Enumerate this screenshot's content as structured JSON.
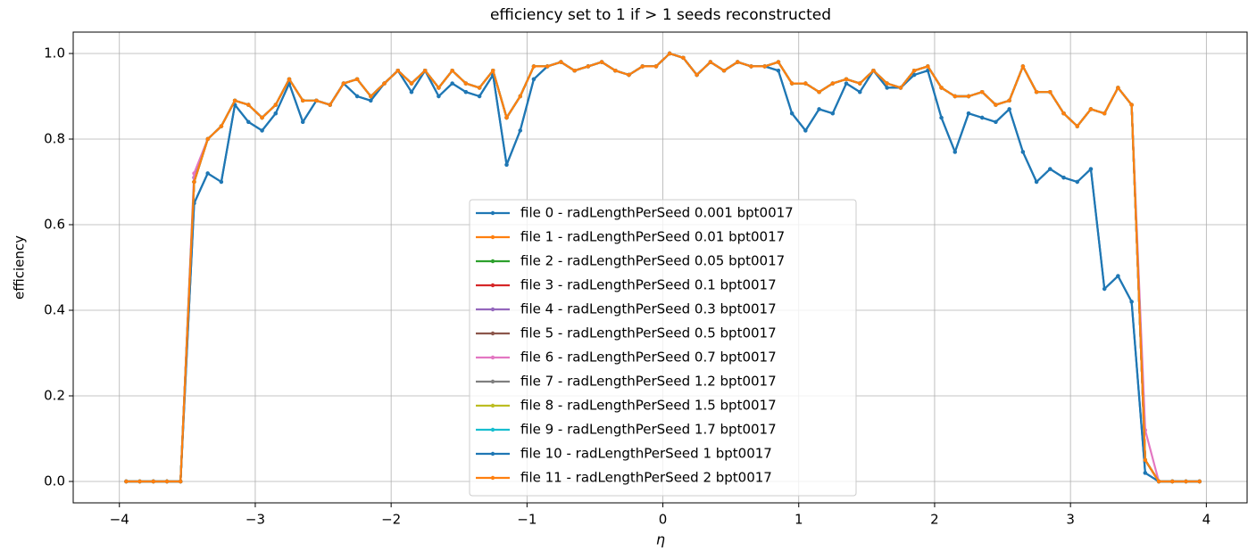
{
  "chart_data": {
    "type": "line",
    "title": "efficiency set to 1 if > 1 seeds reconstructed",
    "x_label": "η",
    "y_label": "efficiency",
    "xlim": [
      -4.34,
      4.3
    ],
    "ylim": [
      -0.05,
      1.05
    ],
    "xticks": [
      {
        "value": -4,
        "label": "−4"
      },
      {
        "value": -3,
        "label": "−3"
      },
      {
        "value": -2,
        "label": "−2"
      },
      {
        "value": -1,
        "label": "−1"
      },
      0,
      1,
      2,
      3,
      4
    ],
    "yticks": [
      {
        "value": 0,
        "label": "0.0"
      },
      {
        "value": 0.2,
        "label": "0.2"
      },
      {
        "value": 0.4,
        "label": "0.4"
      },
      {
        "value": 0.6,
        "label": "0.6"
      },
      {
        "value": 0.8,
        "label": "0.8"
      },
      {
        "value": 1,
        "label": "1.0"
      }
    ],
    "grid": true,
    "legend": "lower center",
    "x": [
      -3.95,
      -3.85,
      -3.75,
      -3.65,
      -3.55,
      -3.45,
      -3.35,
      -3.25,
      -3.15,
      -3.05,
      -2.95,
      -2.85,
      -2.75,
      -2.65,
      -2.55,
      -2.45,
      -2.35,
      -2.25,
      -2.15,
      -2.05,
      -1.95,
      -1.85,
      -1.75,
      -1.65,
      -1.55,
      -1.45,
      -1.35,
      -1.25,
      -1.15,
      -1.05,
      -0.95,
      -0.85,
      -0.75,
      -0.65,
      -0.55,
      -0.45,
      -0.35,
      -0.25,
      -0.15,
      -0.05,
      0.05,
      0.15,
      0.25,
      0.35,
      0.45,
      0.55,
      0.65,
      0.75,
      0.85,
      0.95,
      1.05,
      1.15,
      1.25,
      1.35,
      1.45,
      1.55,
      1.65,
      1.75,
      1.85,
      1.95,
      2.05,
      2.15,
      2.25,
      2.35,
      2.45,
      2.55,
      2.65,
      2.75,
      2.85,
      2.95,
      3.05,
      3.15,
      3.25,
      3.35,
      3.45,
      3.55,
      3.65,
      3.75,
      3.85,
      3.95
    ],
    "series": [
      {
        "name": "file 0 - radLengthPerSeed 0.001 bpt0017",
        "color": "#1f77b4",
        "values": [
          0,
          0,
          0,
          0,
          0,
          0.65,
          0.72,
          0.7,
          0.88,
          0.84,
          0.82,
          0.86,
          0.93,
          0.84,
          0.89,
          0.88,
          0.93,
          0.9,
          0.89,
          0.93,
          0.96,
          0.91,
          0.96,
          0.9,
          0.93,
          0.91,
          0.9,
          0.95,
          0.74,
          0.82,
          0.94,
          0.97,
          0.98,
          0.96,
          0.97,
          0.98,
          0.96,
          0.95,
          0.97,
          0.97,
          1.0,
          0.99,
          0.95,
          0.98,
          0.96,
          0.98,
          0.97,
          0.97,
          0.96,
          0.86,
          0.82,
          0.87,
          0.86,
          0.93,
          0.91,
          0.96,
          0.92,
          0.92,
          0.95,
          0.96,
          0.85,
          0.77,
          0.86,
          0.85,
          0.84,
          0.87,
          0.77,
          0.7,
          0.73,
          0.71,
          0.7,
          0.73,
          0.45,
          0.48,
          0.42,
          0.02,
          0,
          0,
          0,
          0
        ]
      },
      {
        "name": "file 1 - radLengthPerSeed 0.01 bpt0017",
        "color": "#ff7f0e",
        "values": [
          0,
          0,
          0,
          0,
          0,
          0.7,
          0.8,
          0.83,
          0.89,
          0.88,
          0.85,
          0.88,
          0.94,
          0.89,
          0.89,
          0.88,
          0.93,
          0.94,
          0.9,
          0.93,
          0.96,
          0.93,
          0.96,
          0.92,
          0.96,
          0.93,
          0.92,
          0.96,
          0.85,
          0.9,
          0.97,
          0.97,
          0.98,
          0.96,
          0.97,
          0.98,
          0.96,
          0.95,
          0.97,
          0.97,
          1.0,
          0.99,
          0.95,
          0.98,
          0.96,
          0.98,
          0.97,
          0.97,
          0.98,
          0.93,
          0.93,
          0.91,
          0.93,
          0.94,
          0.93,
          0.96,
          0.93,
          0.92,
          0.96,
          0.97,
          0.92,
          0.9,
          0.9,
          0.91,
          0.88,
          0.89,
          0.97,
          0.91,
          0.91,
          0.86,
          0.83,
          0.87,
          0.86,
          0.92,
          0.88,
          0.05,
          0,
          0,
          0,
          0
        ]
      },
      {
        "name": "file 2 - radLengthPerSeed 0.05 bpt0017",
        "color": "#2ca02c",
        "values": [
          0,
          0,
          0,
          0,
          0,
          0.7,
          0.8,
          0.83,
          0.89,
          0.88,
          0.85,
          0.88,
          0.94,
          0.89,
          0.89,
          0.88,
          0.93,
          0.94,
          0.9,
          0.93,
          0.96,
          0.93,
          0.96,
          0.92,
          0.96,
          0.93,
          0.92,
          0.96,
          0.85,
          0.9,
          0.97,
          0.97,
          0.98,
          0.96,
          0.97,
          0.98,
          0.96,
          0.95,
          0.97,
          0.97,
          1.0,
          0.99,
          0.95,
          0.98,
          0.96,
          0.98,
          0.97,
          0.97,
          0.98,
          0.93,
          0.93,
          0.91,
          0.93,
          0.94,
          0.93,
          0.96,
          0.93,
          0.92,
          0.96,
          0.97,
          0.92,
          0.9,
          0.9,
          0.91,
          0.88,
          0.89,
          0.97,
          0.91,
          0.91,
          0.86,
          0.83,
          0.87,
          0.86,
          0.92,
          0.88,
          0.05,
          0,
          0,
          0,
          0
        ]
      },
      {
        "name": "file 3 - radLengthPerSeed 0.1 bpt0017",
        "color": "#d62728",
        "values": [
          0,
          0,
          0,
          0,
          0,
          0.7,
          0.8,
          0.83,
          0.89,
          0.88,
          0.85,
          0.88,
          0.94,
          0.89,
          0.89,
          0.88,
          0.93,
          0.94,
          0.9,
          0.93,
          0.96,
          0.93,
          0.96,
          0.92,
          0.96,
          0.93,
          0.92,
          0.96,
          0.85,
          0.9,
          0.97,
          0.97,
          0.98,
          0.96,
          0.97,
          0.98,
          0.96,
          0.95,
          0.97,
          0.97,
          1.0,
          0.99,
          0.95,
          0.98,
          0.96,
          0.98,
          0.97,
          0.97,
          0.98,
          0.93,
          0.93,
          0.91,
          0.93,
          0.94,
          0.93,
          0.96,
          0.93,
          0.92,
          0.96,
          0.97,
          0.92,
          0.9,
          0.9,
          0.91,
          0.88,
          0.89,
          0.97,
          0.91,
          0.91,
          0.86,
          0.83,
          0.87,
          0.86,
          0.92,
          0.88,
          0.05,
          0,
          0,
          0,
          0
        ]
      },
      {
        "name": "file 4 - radLengthPerSeed 0.3 bpt0017",
        "color": "#9467bd",
        "values": [
          0,
          0,
          0,
          0,
          0,
          0.71,
          0.8,
          0.83,
          0.89,
          0.88,
          0.85,
          0.88,
          0.94,
          0.89,
          0.89,
          0.88,
          0.93,
          0.94,
          0.9,
          0.93,
          0.96,
          0.93,
          0.96,
          0.92,
          0.96,
          0.93,
          0.92,
          0.96,
          0.85,
          0.9,
          0.97,
          0.97,
          0.98,
          0.96,
          0.97,
          0.98,
          0.96,
          0.95,
          0.97,
          0.97,
          1.0,
          0.99,
          0.95,
          0.98,
          0.96,
          0.98,
          0.97,
          0.97,
          0.98,
          0.93,
          0.93,
          0.91,
          0.93,
          0.94,
          0.93,
          0.96,
          0.93,
          0.92,
          0.96,
          0.97,
          0.92,
          0.9,
          0.9,
          0.91,
          0.88,
          0.89,
          0.97,
          0.91,
          0.91,
          0.86,
          0.83,
          0.87,
          0.86,
          0.92,
          0.88,
          0.05,
          0,
          0,
          0,
          0
        ]
      },
      {
        "name": "file 5 - radLengthPerSeed 0.5 bpt0017",
        "color": "#8c564b",
        "values": [
          0,
          0,
          0,
          0,
          0,
          0.7,
          0.8,
          0.83,
          0.89,
          0.88,
          0.85,
          0.88,
          0.94,
          0.89,
          0.89,
          0.88,
          0.93,
          0.94,
          0.9,
          0.93,
          0.96,
          0.93,
          0.96,
          0.92,
          0.96,
          0.93,
          0.92,
          0.96,
          0.85,
          0.9,
          0.97,
          0.97,
          0.98,
          0.96,
          0.97,
          0.98,
          0.96,
          0.95,
          0.97,
          0.97,
          1.0,
          0.99,
          0.95,
          0.98,
          0.96,
          0.98,
          0.97,
          0.97,
          0.98,
          0.93,
          0.93,
          0.91,
          0.93,
          0.94,
          0.93,
          0.96,
          0.93,
          0.92,
          0.96,
          0.97,
          0.92,
          0.9,
          0.9,
          0.91,
          0.88,
          0.89,
          0.97,
          0.91,
          0.91,
          0.86,
          0.83,
          0.87,
          0.86,
          0.92,
          0.88,
          0.05,
          0,
          0,
          0,
          0
        ]
      },
      {
        "name": "file 6 - radLengthPerSeed 0.7 bpt0017",
        "color": "#e377c2",
        "values": [
          0,
          0,
          0,
          0,
          0,
          0.72,
          0.8,
          0.83,
          0.89,
          0.88,
          0.85,
          0.88,
          0.94,
          0.89,
          0.89,
          0.88,
          0.93,
          0.94,
          0.9,
          0.93,
          0.96,
          0.93,
          0.96,
          0.92,
          0.96,
          0.93,
          0.92,
          0.96,
          0.85,
          0.9,
          0.97,
          0.97,
          0.98,
          0.96,
          0.97,
          0.98,
          0.96,
          0.95,
          0.97,
          0.97,
          1.0,
          0.99,
          0.95,
          0.98,
          0.96,
          0.98,
          0.97,
          0.97,
          0.98,
          0.93,
          0.93,
          0.91,
          0.93,
          0.94,
          0.93,
          0.96,
          0.93,
          0.92,
          0.96,
          0.97,
          0.92,
          0.9,
          0.9,
          0.91,
          0.88,
          0.89,
          0.97,
          0.91,
          0.91,
          0.86,
          0.83,
          0.87,
          0.86,
          0.92,
          0.88,
          0.12,
          0,
          0,
          0,
          0
        ]
      },
      {
        "name": "file 7 - radLengthPerSeed 1.2 bpt0017",
        "color": "#7f7f7f",
        "values": [
          0,
          0,
          0,
          0,
          0,
          0.7,
          0.8,
          0.83,
          0.89,
          0.88,
          0.85,
          0.88,
          0.94,
          0.89,
          0.89,
          0.88,
          0.93,
          0.94,
          0.9,
          0.93,
          0.96,
          0.93,
          0.96,
          0.92,
          0.96,
          0.93,
          0.92,
          0.96,
          0.85,
          0.9,
          0.97,
          0.97,
          0.98,
          0.96,
          0.97,
          0.98,
          0.96,
          0.95,
          0.97,
          0.97,
          1.0,
          0.99,
          0.95,
          0.98,
          0.96,
          0.98,
          0.97,
          0.97,
          0.98,
          0.93,
          0.93,
          0.91,
          0.93,
          0.94,
          0.93,
          0.96,
          0.93,
          0.92,
          0.96,
          0.97,
          0.92,
          0.9,
          0.9,
          0.91,
          0.88,
          0.89,
          0.97,
          0.91,
          0.91,
          0.86,
          0.83,
          0.87,
          0.86,
          0.92,
          0.88,
          0.05,
          0,
          0,
          0,
          0
        ]
      },
      {
        "name": "file 8 - radLengthPerSeed 1.5 bpt0017",
        "color": "#bcbd22",
        "values": [
          0,
          0,
          0,
          0,
          0,
          0.7,
          0.8,
          0.83,
          0.89,
          0.88,
          0.85,
          0.88,
          0.94,
          0.89,
          0.89,
          0.88,
          0.93,
          0.94,
          0.9,
          0.93,
          0.96,
          0.93,
          0.96,
          0.92,
          0.96,
          0.93,
          0.92,
          0.96,
          0.85,
          0.9,
          0.97,
          0.97,
          0.98,
          0.96,
          0.97,
          0.98,
          0.96,
          0.95,
          0.97,
          0.97,
          1.0,
          0.99,
          0.95,
          0.98,
          0.96,
          0.98,
          0.97,
          0.97,
          0.98,
          0.93,
          0.93,
          0.91,
          0.93,
          0.94,
          0.93,
          0.96,
          0.93,
          0.92,
          0.96,
          0.97,
          0.92,
          0.9,
          0.9,
          0.91,
          0.88,
          0.89,
          0.97,
          0.91,
          0.91,
          0.86,
          0.83,
          0.87,
          0.86,
          0.92,
          0.88,
          0.05,
          0,
          0,
          0,
          0
        ]
      },
      {
        "name": "file 9 - radLengthPerSeed 1.7 bpt0017",
        "color": "#17becf",
        "values": [
          0,
          0,
          0,
          0,
          0,
          0.7,
          0.8,
          0.83,
          0.89,
          0.88,
          0.85,
          0.88,
          0.94,
          0.89,
          0.89,
          0.88,
          0.93,
          0.94,
          0.9,
          0.93,
          0.96,
          0.93,
          0.96,
          0.92,
          0.96,
          0.93,
          0.92,
          0.96,
          0.85,
          0.9,
          0.97,
          0.97,
          0.98,
          0.96,
          0.97,
          0.98,
          0.96,
          0.95,
          0.97,
          0.97,
          1.0,
          0.99,
          0.95,
          0.98,
          0.96,
          0.98,
          0.97,
          0.97,
          0.98,
          0.93,
          0.93,
          0.91,
          0.93,
          0.94,
          0.93,
          0.96,
          0.93,
          0.92,
          0.96,
          0.97,
          0.92,
          0.9,
          0.9,
          0.91,
          0.88,
          0.89,
          0.97,
          0.91,
          0.91,
          0.86,
          0.83,
          0.87,
          0.86,
          0.92,
          0.88,
          0.05,
          0,
          0,
          0,
          0
        ]
      },
      {
        "name": "file 10 - radLengthPerSeed 1 bpt0017",
        "color": "#1f77b4",
        "values": [
          0,
          0,
          0,
          0,
          0,
          0.65,
          0.72,
          0.7,
          0.88,
          0.84,
          0.82,
          0.86,
          0.93,
          0.84,
          0.89,
          0.88,
          0.93,
          0.9,
          0.89,
          0.93,
          0.96,
          0.91,
          0.96,
          0.9,
          0.93,
          0.91,
          0.9,
          0.95,
          0.74,
          0.82,
          0.94,
          0.97,
          0.98,
          0.96,
          0.97,
          0.98,
          0.96,
          0.95,
          0.97,
          0.97,
          1.0,
          0.99,
          0.95,
          0.98,
          0.96,
          0.98,
          0.97,
          0.97,
          0.96,
          0.86,
          0.82,
          0.87,
          0.86,
          0.93,
          0.91,
          0.96,
          0.92,
          0.92,
          0.95,
          0.96,
          0.85,
          0.77,
          0.86,
          0.85,
          0.84,
          0.87,
          0.77,
          0.7,
          0.73,
          0.71,
          0.7,
          0.73,
          0.45,
          0.48,
          0.42,
          0.02,
          0,
          0,
          0,
          0
        ]
      },
      {
        "name": "file 11 - radLengthPerSeed 2 bpt0017",
        "color": "#ff7f0e",
        "values": [
          0,
          0,
          0,
          0,
          0,
          0.7,
          0.8,
          0.83,
          0.89,
          0.88,
          0.85,
          0.88,
          0.94,
          0.89,
          0.89,
          0.88,
          0.93,
          0.94,
          0.9,
          0.93,
          0.96,
          0.93,
          0.96,
          0.92,
          0.96,
          0.93,
          0.92,
          0.96,
          0.85,
          0.9,
          0.97,
          0.97,
          0.98,
          0.96,
          0.97,
          0.98,
          0.96,
          0.95,
          0.97,
          0.97,
          1.0,
          0.99,
          0.95,
          0.98,
          0.96,
          0.98,
          0.97,
          0.97,
          0.98,
          0.93,
          0.93,
          0.91,
          0.93,
          0.94,
          0.93,
          0.96,
          0.93,
          0.92,
          0.96,
          0.97,
          0.92,
          0.9,
          0.9,
          0.91,
          0.88,
          0.89,
          0.97,
          0.91,
          0.91,
          0.86,
          0.83,
          0.87,
          0.86,
          0.92,
          0.88,
          0.05,
          0,
          0,
          0,
          0
        ]
      }
    ]
  }
}
